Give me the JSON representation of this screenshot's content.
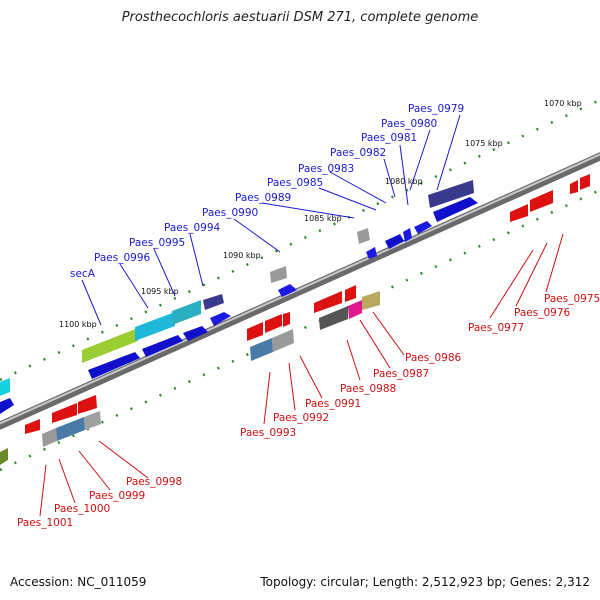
{
  "title": "Prosthecochloris aestuarii DSM 271, complete genome",
  "footer": {
    "accession": "Accession: NC_011059",
    "topology": "Topology: circular; Length: 2,512,923 bp; Genes: 2,312"
  },
  "scale_labels": [
    "1070 kbp",
    "1075 kbp",
    "1080 kbp",
    "1085 kbp",
    "1090 kbp",
    "1095 kbp",
    "1100 kbp"
  ],
  "forward_gene_labels": [
    "Paes_0979",
    "Paes_0980",
    "Paes_0981",
    "Paes_0982",
    "Paes_0983",
    "Paes_0985",
    "Paes_0989",
    "Paes_0990",
    "Paes_0994",
    "Paes_0995",
    "Paes_0996",
    "secA"
  ],
  "reverse_gene_labels": [
    "Paes_0975",
    "Paes_0976",
    "Paes_0977",
    "Paes_0986",
    "Paes_0987",
    "Paes_0988",
    "Paes_0991",
    "Paes_0992",
    "Paes_0993",
    "Paes_0998",
    "Paes_0999",
    "Paes_1000",
    "Paes_1001"
  ],
  "colors": {
    "forward_label": "#1a1acc",
    "reverse_label": "#cc1111",
    "backbone": "#8a8a8a",
    "tick": "#2a8a2a"
  }
}
